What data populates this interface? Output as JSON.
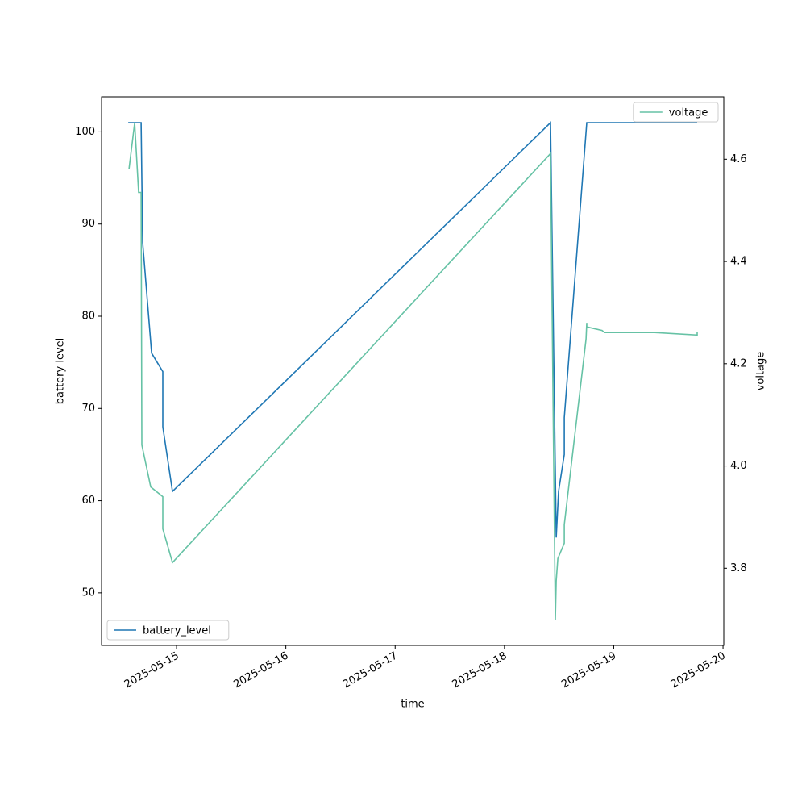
{
  "chart_data": {
    "type": "line",
    "x_label": "time",
    "y_label": "battery level",
    "y2_label": "voltage",
    "xlim": [
      "2025-05-14T07:32",
      "2025-05-20T00:10"
    ],
    "xticks": [
      "2025-05-15",
      "2025-05-16",
      "2025-05-17",
      "2025-05-18",
      "2025-05-19",
      "2025-05-20"
    ],
    "ylim": [
      44.3,
      103.8
    ],
    "yticks": [
      50,
      60,
      70,
      80,
      90,
      100
    ],
    "y2lim": [
      3.649,
      4.722
    ],
    "y2ticks": [
      3.8,
      {
        "value": 4,
        "label": "4.0"
      },
      4.2,
      4.4,
      4.6
    ],
    "legend_position": [
      "lower left",
      "upper right"
    ],
    "series": [
      {
        "name": "battery_level",
        "color": "#1f77b4",
        "axis": "y",
        "x": [
          "2025-05-14T13:23",
          "2025-05-14T16:13",
          "2025-05-14T16:34",
          "2025-05-14T18:31",
          "2025-05-14T20:59",
          "2025-05-14T20:59",
          "2025-05-14T23:07",
          "2025-05-18T10:07",
          "2025-05-18T11:22",
          "2025-05-18T11:53",
          "2025-05-18T13:08",
          "2025-05-18T13:08",
          "2025-05-18T18:05",
          "2025-05-19T18:20"
        ],
        "values": [
          101,
          101,
          88,
          76,
          74,
          68,
          61,
          101,
          56,
          61,
          65,
          69,
          101,
          101
        ]
      },
      {
        "name": "voltage",
        "color": "#66c2a5",
        "axis": "y2",
        "x": [
          "2025-05-14T13:34",
          "2025-05-14T14:48",
          "2025-05-14T15:41",
          "2025-05-14T16:13",
          "2025-05-14T16:23",
          "2025-05-14T18:20",
          "2025-05-14T20:59",
          "2025-05-14T20:59",
          "2025-05-14T23:07",
          "2025-05-18T10:07",
          "2025-05-18T11:11",
          "2025-05-18T11:22",
          "2025-05-18T11:43",
          "2025-05-18T13:08",
          "2025-05-18T13:08",
          "2025-05-18T17:55",
          "2025-05-18T18:05",
          "2025-05-18T18:05",
          "2025-05-18T21:27",
          "2025-05-18T21:59",
          "2025-05-19T08:58",
          "2025-05-19T18:20",
          "2025-05-19T18:20"
        ],
        "values": [
          4.581,
          4.671,
          4.535,
          4.535,
          4.041,
          3.959,
          3.94,
          3.877,
          3.811,
          4.611,
          3.699,
          3.775,
          3.819,
          3.849,
          3.885,
          4.248,
          4.28,
          4.272,
          4.265,
          4.261,
          4.261,
          4.256,
          4.262
        ]
      }
    ]
  }
}
